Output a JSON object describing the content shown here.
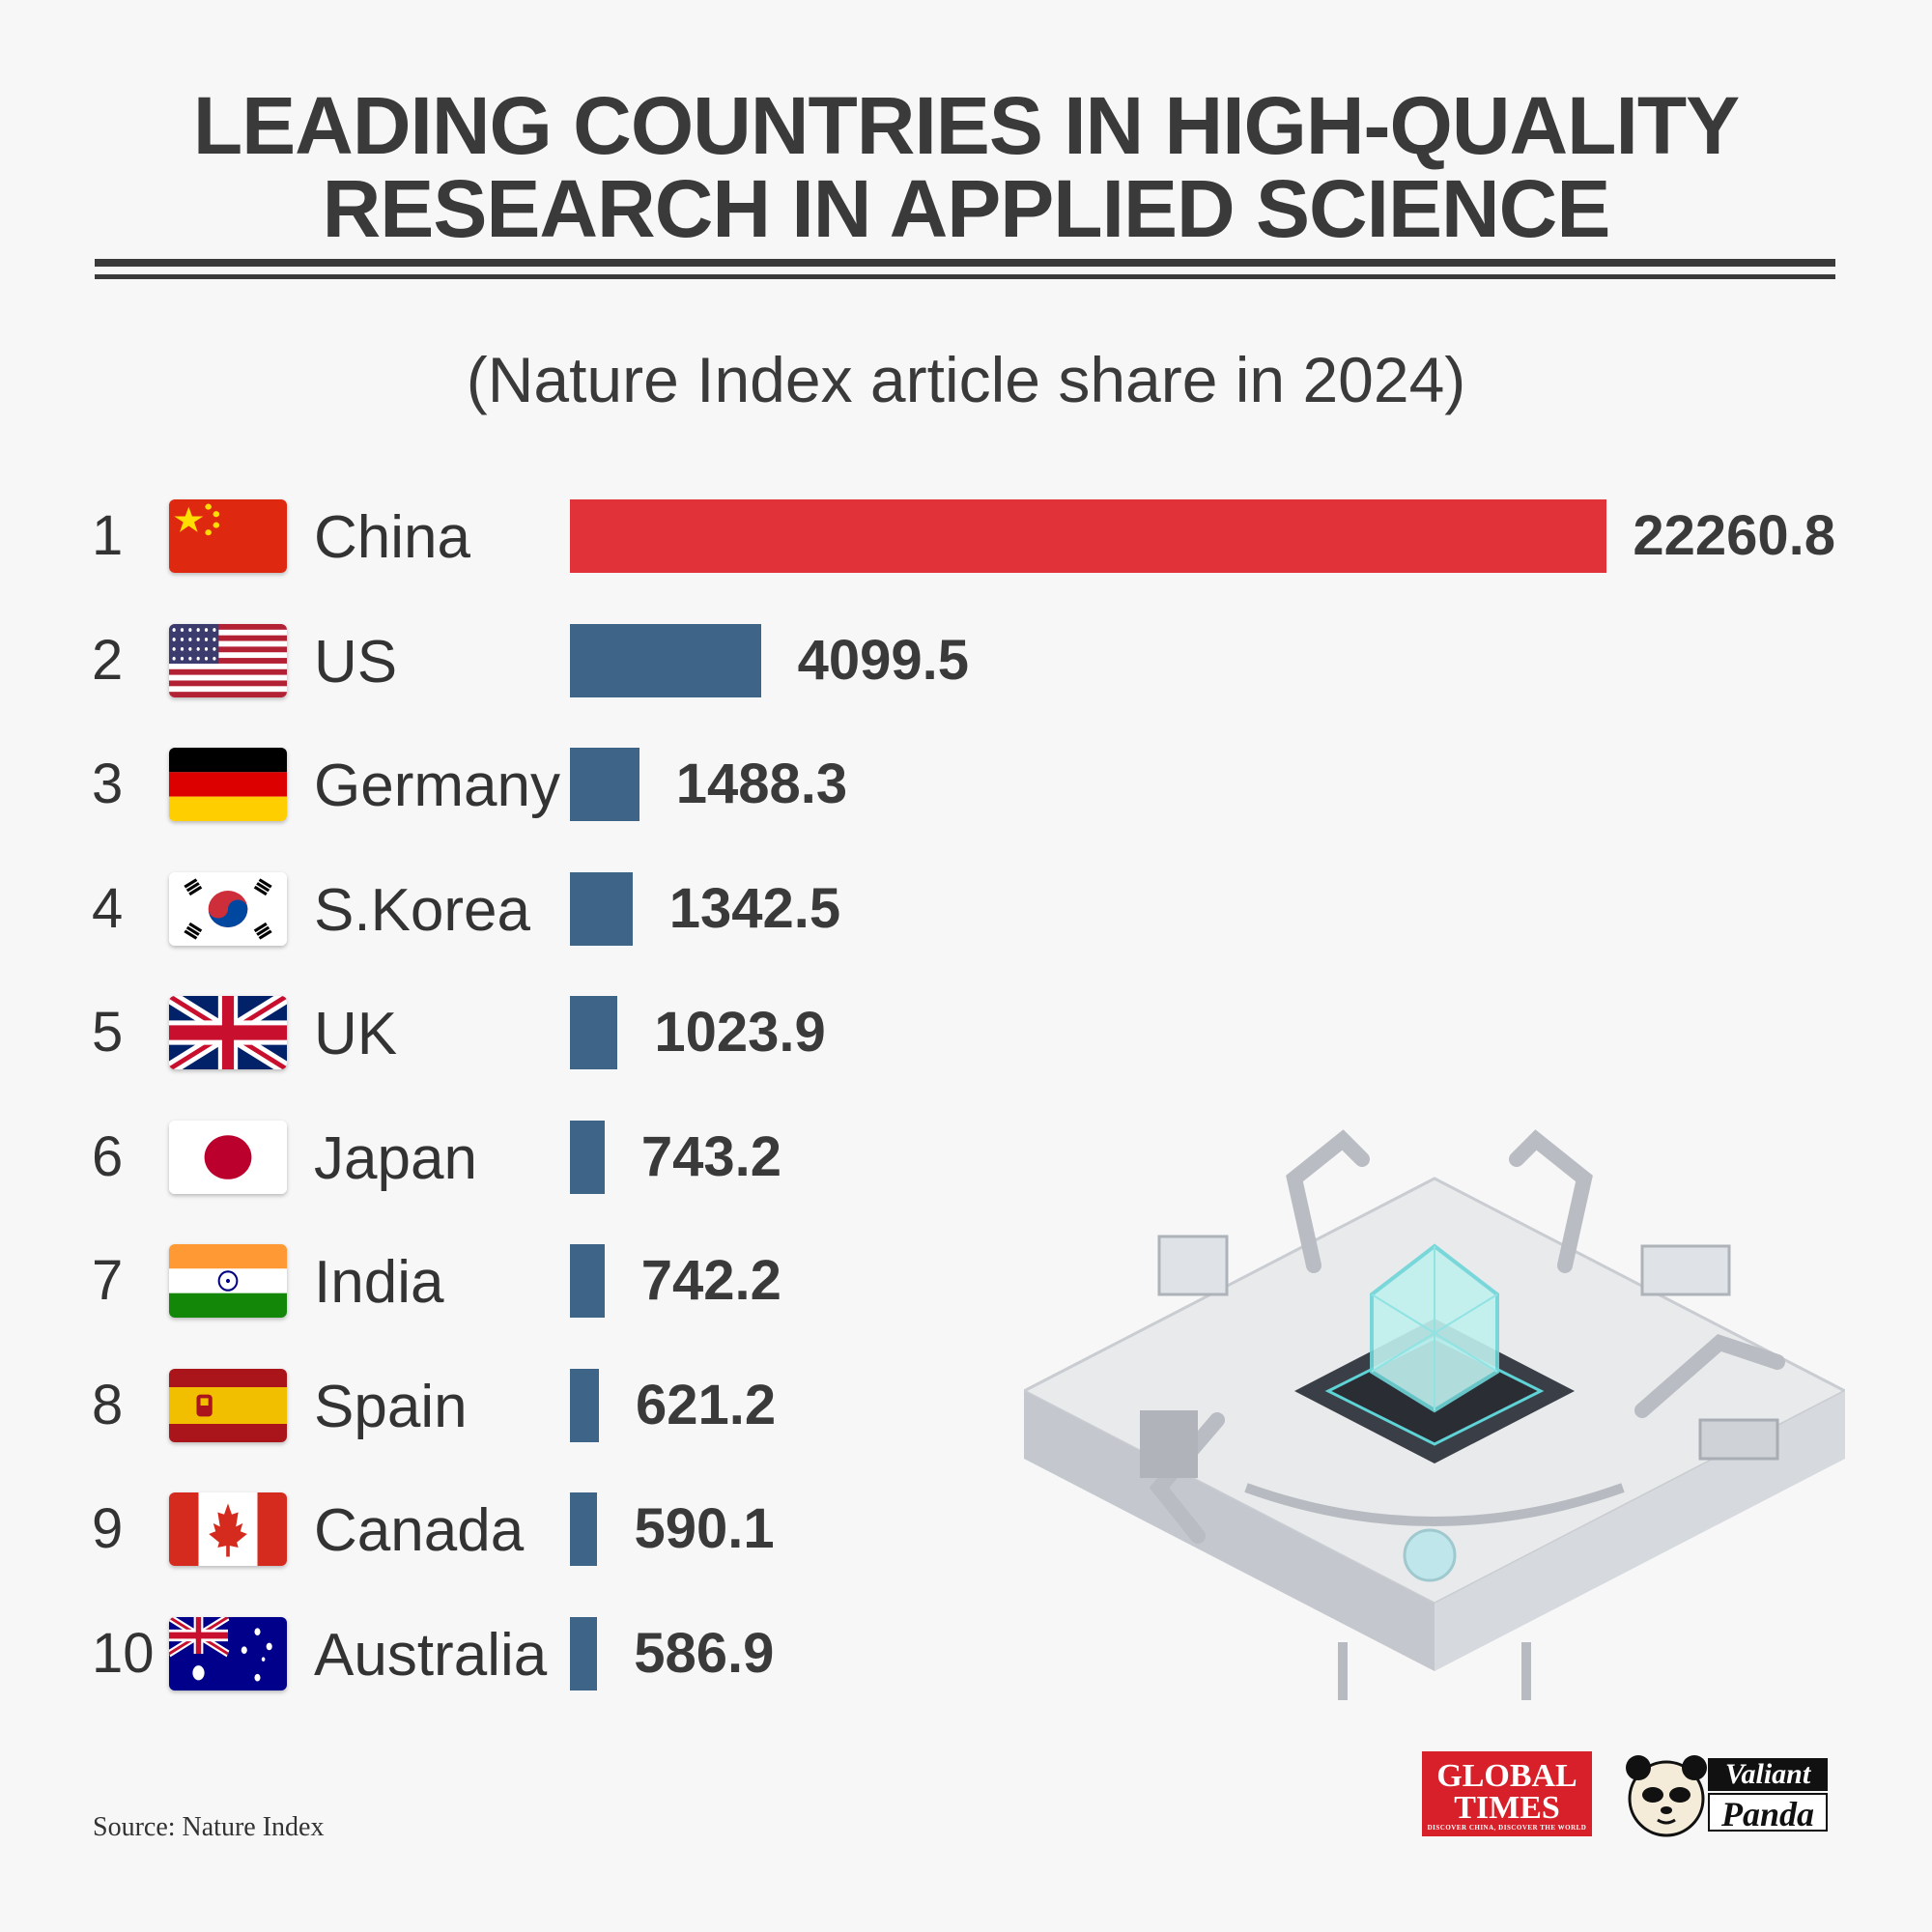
{
  "title_lines": [
    "LEADING COUNTRIES IN HIGH-QUALITY",
    "RESEARCH IN APPLIED SCIENCE"
  ],
  "subtitle": "(Nature Index article share in 2024)",
  "source": "Source: Nature Index",
  "colors": {
    "china_bar": "#e1323a",
    "other_bar": "#3e6587",
    "background": "#f7f7f7"
  },
  "logos": {
    "global_times": {
      "line1": "GLOBAL",
      "line2": "TIMES",
      "tagline": "DISCOVER CHINA, DISCOVER THE WORLD"
    },
    "valiant_panda": {
      "line1": "Valiant",
      "line2": "Panda"
    }
  },
  "chart_data": {
    "type": "bar",
    "orientation": "horizontal",
    "title": "LEADING COUNTRIES IN HIGH-QUALITY RESEARCH IN APPLIED SCIENCE",
    "subtitle": "(Nature Index article share in 2024)",
    "categories": [
      "China",
      "US",
      "Germany",
      "S.Korea",
      "UK",
      "Japan",
      "India",
      "Spain",
      "Canada",
      "Australia"
    ],
    "ranks": [
      "1",
      "2",
      "3",
      "4",
      "5",
      "6",
      "7",
      "8",
      "9",
      "10"
    ],
    "flags": [
      "china-flag-icon",
      "us-flag-icon",
      "germany-flag-icon",
      "south-korea-flag-icon",
      "uk-flag-icon",
      "japan-flag-icon",
      "india-flag-icon",
      "spain-flag-icon",
      "canada-flag-icon",
      "australia-flag-icon"
    ],
    "values": [
      22260.8,
      4099.5,
      1488.3,
      1342.5,
      1023.9,
      743.2,
      742.2,
      621.2,
      590.1,
      586.9
    ],
    "value_labels": [
      "22260.8",
      "4099.5",
      "1488.3",
      "1342.5",
      "1023.9",
      "743.2",
      "742.2",
      "621.2",
      "590.1",
      "586.9"
    ],
    "xlim": [
      0,
      22260.8
    ],
    "grid": false,
    "legend": "none"
  }
}
